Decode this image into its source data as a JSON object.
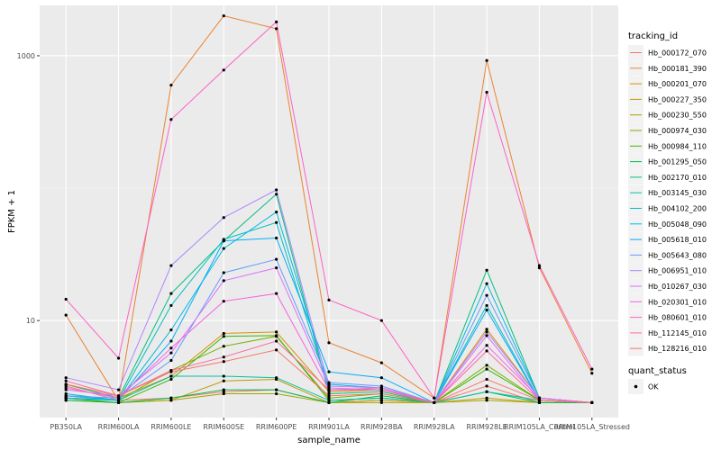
{
  "chart_data": {
    "type": "line",
    "xlabel": "sample_name",
    "ylabel": "FPKM + 1",
    "y_scale": "log10",
    "ylim": [
      1.85,
      2400
    ],
    "y_ticks": [
      10,
      1000
    ],
    "y_tick_labels": [
      "10",
      "1000"
    ],
    "grid": true,
    "legend_position": "right",
    "categories": [
      "PB350LA",
      "RRIM600LA",
      "RRIM600LE",
      "RRIM600SE",
      "RRIM600PE",
      "RRIM901LA",
      "RRIM928BA",
      "RRIM928LA",
      "RRIM928LE",
      "RRIM105LA_Control",
      "RRIM105LA_Stressed"
    ],
    "legend_title": "tracking_id",
    "series": [
      {
        "name": "Hb_000172_070",
        "color": "#F8766D",
        "values": [
          3.2,
          2.5,
          2.6,
          2.9,
          3.0,
          2.4,
          2.5,
          2.4,
          3.2,
          2.4,
          2.4
        ]
      },
      {
        "name": "Hb_000181_390",
        "color": "#EA8331",
        "values": [
          11.0,
          2.5,
          600,
          2000,
          1600,
          6.8,
          4.8,
          2.6,
          920,
          25,
          4.0
        ]
      },
      {
        "name": "Hb_000201_070",
        "color": "#D89000",
        "values": [
          3.3,
          2.6,
          3.8,
          8.0,
          8.2,
          2.9,
          3.0,
          2.4,
          8.6,
          2.6,
          2.4
        ]
      },
      {
        "name": "Hb_000227_350",
        "color": "#C09B00",
        "values": [
          2.6,
          2.4,
          2.5,
          3.5,
          3.6,
          2.4,
          2.5,
          2.4,
          2.6,
          2.4,
          2.4
        ]
      },
      {
        "name": "Hb_000230_550",
        "color": "#A3A500",
        "values": [
          2.5,
          2.4,
          2.5,
          2.8,
          2.8,
          2.4,
          2.4,
          2.4,
          2.5,
          2.4,
          2.4
        ]
      },
      {
        "name": "Hb_000974_030",
        "color": "#7CAE00",
        "values": [
          2.6,
          2.5,
          4.2,
          6.4,
          7.6,
          2.6,
          2.8,
          2.4,
          4.6,
          2.5,
          2.4
        ]
      },
      {
        "name": "Hb_000984_110",
        "color": "#39B600",
        "values": [
          2.6,
          2.4,
          3.6,
          7.6,
          7.7,
          2.5,
          2.6,
          2.4,
          4.3,
          2.5,
          2.4
        ]
      },
      {
        "name": "Hb_001295_050",
        "color": "#00BB4E",
        "values": [
          2.5,
          2.4,
          2.6,
          3.0,
          3.0,
          2.4,
          2.7,
          2.4,
          2.9,
          2.4,
          2.4
        ]
      },
      {
        "name": "Hb_002170_010",
        "color": "#00BF7D",
        "values": [
          3.3,
          2.6,
          16,
          40,
          90,
          2.8,
          2.9,
          2.4,
          24,
          2.6,
          2.4
        ]
      },
      {
        "name": "Hb_003145_030",
        "color": "#00C1A3",
        "values": [
          2.7,
          2.5,
          3.8,
          3.8,
          3.7,
          2.5,
          2.6,
          2.4,
          2.9,
          2.5,
          2.4
        ]
      },
      {
        "name": "Hb_004102_200",
        "color": "#00BFC4",
        "values": [
          2.8,
          2.5,
          13,
          41,
          55,
          3.0,
          3.0,
          2.4,
          13,
          2.5,
          2.4
        ]
      },
      {
        "name": "Hb_005048_090",
        "color": "#00B9E3",
        "values": [
          2.7,
          2.5,
          8.5,
          35,
          66,
          3.3,
          3.1,
          2.4,
          19,
          2.6,
          2.4
        ]
      },
      {
        "name": "Hb_005618_010",
        "color": "#00ADFA",
        "values": [
          2.6,
          2.5,
          7.0,
          40,
          42,
          4.1,
          3.7,
          2.4,
          12,
          2.5,
          2.4
        ]
      },
      {
        "name": "Hb_005643_080",
        "color": "#619CFF",
        "values": [
          2.7,
          2.6,
          5.0,
          23,
          29,
          3.4,
          3.2,
          2.4,
          15.5,
          2.6,
          2.4
        ]
      },
      {
        "name": "Hb_006951_010",
        "color": "#AE87FF",
        "values": [
          3.7,
          3.0,
          26,
          60,
          97,
          3.1,
          3.0,
          2.4,
          8.2,
          2.6,
          2.4
        ]
      },
      {
        "name": "Hb_010267_030",
        "color": "#DB72FB",
        "values": [
          3.0,
          2.7,
          5.7,
          20,
          25,
          3.2,
          3.1,
          2.4,
          7.7,
          2.5,
          2.4
        ]
      },
      {
        "name": "Hb_020301_010",
        "color": "#F564E3",
        "values": [
          3.1,
          2.6,
          6.2,
          14,
          16,
          3.0,
          3.1,
          2.4,
          6.5,
          2.6,
          2.4
        ]
      },
      {
        "name": "Hb_080601_010",
        "color": "#FF61C3",
        "values": [
          14.5,
          5.2,
          330,
          780,
          1800,
          14.3,
          10.0,
          2.6,
          530,
          26,
          4.3
        ]
      },
      {
        "name": "Hb_112145_010",
        "color": "#FF699C",
        "values": [
          3.5,
          2.7,
          4.2,
          5.3,
          7.0,
          3.0,
          3.0,
          2.4,
          5.9,
          2.5,
          2.4
        ]
      },
      {
        "name": "Hb_128216_010",
        "color": "#F8766D",
        "values": [
          3.3,
          2.7,
          4.1,
          4.9,
          6.0,
          2.7,
          2.8,
          2.4,
          3.6,
          2.5,
          2.4
        ]
      }
    ],
    "quant_status_legend": {
      "title": "quant_status",
      "items": [
        {
          "label": "OK",
          "symbol": "point"
        }
      ]
    }
  }
}
